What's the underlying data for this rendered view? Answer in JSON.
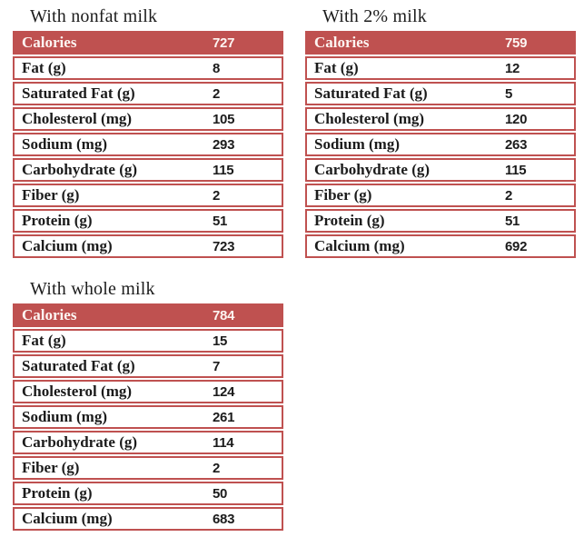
{
  "page": {
    "background": "#ffffff",
    "accent_color": "#bf5150",
    "header_text_color": "#ffffff"
  },
  "tables": [
    {
      "title": "With nonfat milk",
      "header": {
        "label": "Calories",
        "value": "727"
      },
      "rows": [
        {
          "label": "Fat (g)",
          "value": "8"
        },
        {
          "label": "Saturated Fat (g)",
          "value": "2"
        },
        {
          "label": "Cholesterol (mg)",
          "value": "105"
        },
        {
          "label": "Sodium (mg)",
          "value": "293"
        },
        {
          "label": "Carbohydrate (g)",
          "value": "115"
        },
        {
          "label": "Fiber (g)",
          "value": "2"
        },
        {
          "label": "Protein (g)",
          "value": "51"
        },
        {
          "label": "Calcium (mg)",
          "value": "723"
        }
      ]
    },
    {
      "title": "With 2% milk",
      "header": {
        "label": "Calories",
        "value": "759"
      },
      "rows": [
        {
          "label": "Fat (g)",
          "value": "12"
        },
        {
          "label": "Saturated Fat (g)",
          "value": "5"
        },
        {
          "label": "Cholesterol (mg)",
          "value": "120"
        },
        {
          "label": "Sodium (mg)",
          "value": "263"
        },
        {
          "label": "Carbohydrate (g)",
          "value": "115"
        },
        {
          "label": "Fiber (g)",
          "value": "2"
        },
        {
          "label": "Protein (g)",
          "value": "51"
        },
        {
          "label": "Calcium (mg)",
          "value": "692"
        }
      ]
    },
    {
      "title": "With whole milk",
      "header": {
        "label": "Calories",
        "value": "784"
      },
      "rows": [
        {
          "label": "Fat (g)",
          "value": "15"
        },
        {
          "label": "Saturated Fat (g)",
          "value": "7"
        },
        {
          "label": "Cholesterol (mg)",
          "value": "124"
        },
        {
          "label": "Sodium (mg)",
          "value": "261"
        },
        {
          "label": "Carbohydrate (g)",
          "value": "114"
        },
        {
          "label": "Fiber (g)",
          "value": "2"
        },
        {
          "label": "Protein (g)",
          "value": "50"
        },
        {
          "label": "Calcium (mg)",
          "value": "683"
        }
      ]
    }
  ]
}
